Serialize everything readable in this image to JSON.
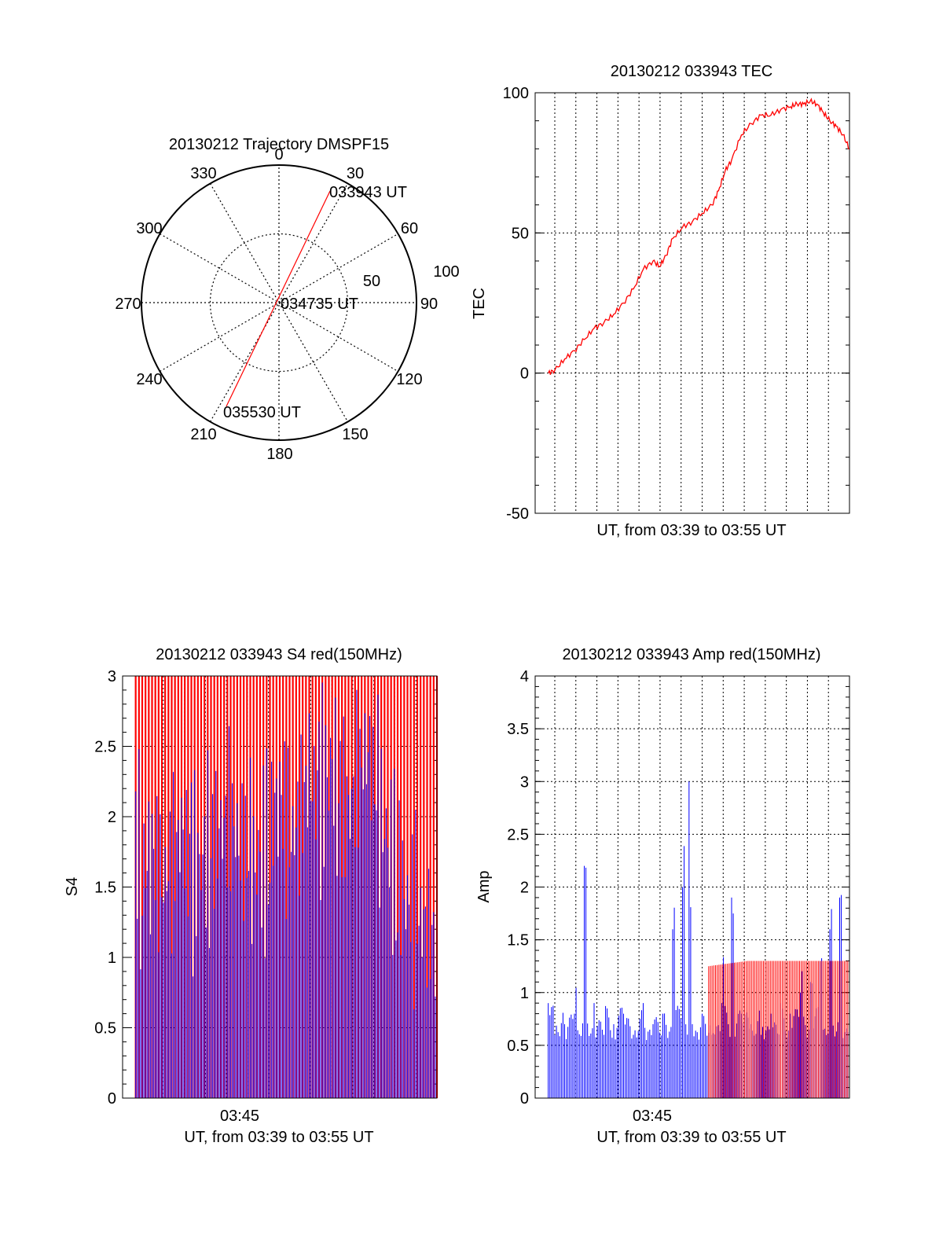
{
  "colors": {
    "red": "#ff0000",
    "blue": "#0000ff",
    "axis": "#000000"
  },
  "panels": {
    "polar": {
      "title": "20130212 Trajectory DMSPF15",
      "angle_labels": [
        "0",
        "30",
        "60",
        "90",
        "120",
        "150",
        "180",
        "210",
        "240",
        "270",
        "300",
        "330"
      ],
      "radius_labels": [
        "50",
        "100"
      ],
      "trajectory_labels": {
        "start": "033943 UT",
        "mid": "034735 UT",
        "end": "035530 UT"
      }
    },
    "tec": {
      "title": "20130212 033943 TEC",
      "xlabel": "UT, from 03:39 to 03:55 UT",
      "ylabel": "TEC"
    },
    "s4": {
      "title": "20130212 033943 S4 red(150MHz)",
      "xlabel": "UT, from 03:39 to 03:55 UT",
      "ylabel": "S4"
    },
    "amp": {
      "title": "20130212 033943 Amp red(150MHz)",
      "xlabel": "UT, from 03:39 to 03:55 UT",
      "ylabel": "Amp"
    }
  },
  "chart_data": [
    {
      "type": "polar",
      "title": "20130212 Trajectory DMSPF15",
      "r_ticks": [
        50,
        100
      ],
      "r_max": 100,
      "angle_ticks": [
        0,
        30,
        60,
        90,
        120,
        150,
        180,
        210,
        240,
        270,
        300,
        330
      ],
      "trajectory": [
        {
          "label": "033943 UT",
          "azimuth": 33,
          "r": 91
        },
        {
          "label": "034735 UT",
          "azimuth": 0,
          "r": 0
        },
        {
          "label": "035530 UT",
          "azimuth": 210,
          "r": 88
        }
      ]
    },
    {
      "type": "line",
      "title": "20130212 033943 TEC",
      "xlabel": "UT, from 03:39 to 03:55 UT",
      "ylabel": "TEC",
      "xlim": [
        "03:39",
        "03:55"
      ],
      "ylim": [
        -50,
        100
      ],
      "y_ticks": [
        -50,
        0,
        50,
        100
      ],
      "series": [
        {
          "color": "#ff0000",
          "x": [
            "03:39:40",
            "03:40",
            "03:40:30",
            "03:41",
            "03:41:30",
            "03:42",
            "03:42:30",
            "03:43",
            "03:43:30",
            "03:44",
            "03:44:30",
            "03:45",
            "03:45:20",
            "03:45:40",
            "03:46",
            "03:46:30",
            "03:47",
            "03:47:30",
            "03:48",
            "03:48:20",
            "03:48:40",
            "03:49",
            "03:49:30",
            "03:50",
            "03:50:30",
            "03:51",
            "03:51:30",
            "03:52",
            "03:52:20",
            "03:52:40",
            "03:53",
            "03:53:20",
            "03:53:40",
            "03:54",
            "03:54:20",
            "03:54:40",
            "03:55"
          ],
          "y": [
            0,
            1,
            5,
            8,
            12,
            16,
            18,
            21,
            25,
            30,
            37,
            40,
            38,
            42,
            48,
            52,
            54,
            57,
            60,
            65,
            72,
            76,
            85,
            89,
            92,
            92,
            94,
            95,
            96,
            96,
            97,
            96,
            93,
            90,
            88,
            85,
            80
          ]
        }
      ]
    },
    {
      "type": "bar",
      "title": "20130212 033943 S4 red(150MHz)",
      "xlabel": "UT, from 03:39 to 03:55 UT",
      "ylabel": "S4",
      "xlim": [
        "03:39",
        "03:55"
      ],
      "ylim": [
        0,
        3
      ],
      "x_tick_labels": [
        "03:45"
      ],
      "y_ticks": [
        0,
        0.5,
        1,
        1.5,
        2,
        2.5,
        3
      ],
      "series": [
        {
          "color": "#ff0000",
          "x": [
            "03:39:40",
            "03:40",
            "03:41",
            "03:42",
            "03:43",
            "03:44",
            "03:45",
            "03:46",
            "03:47",
            "03:48",
            "03:49",
            "03:50",
            "03:51",
            "03:52",
            "03:53",
            "03:54",
            "03:55"
          ],
          "values": [
            3,
            3,
            3,
            3,
            3,
            3,
            3,
            3,
            3,
            3,
            3,
            3,
            3,
            3,
            3,
            3,
            3
          ]
        },
        {
          "color": "#0000ff",
          "x": [
            "03:39:40",
            "03:40",
            "03:40:30",
            "03:41",
            "03:41:30",
            "03:42",
            "03:42:30",
            "03:43",
            "03:43:30",
            "03:44",
            "03:44:30",
            "03:45",
            "03:45:30",
            "03:46",
            "03:46:30",
            "03:47",
            "03:47:30",
            "03:48",
            "03:48:30",
            "03:49",
            "03:49:30",
            "03:50",
            "03:50:30",
            "03:51",
            "03:51:30",
            "03:52",
            "03:52:30",
            "03:53",
            "03:53:30",
            "03:54",
            "03:54:30",
            "03:55"
          ],
          "values": [
            1.9,
            1.6,
            1.8,
            1.5,
            1.7,
            1.9,
            1.6,
            1.7,
            1.8,
            1.9,
            2.0,
            1.8,
            1.7,
            1.6,
            1.9,
            2.2,
            1.8,
            2.0,
            2.3,
            2.1,
            2.4,
            2.2,
            2.0,
            2.3,
            2.5,
            2.1,
            1.8,
            1.6,
            1.4,
            1.3,
            1.2,
            1.1
          ]
        }
      ]
    },
    {
      "type": "bar",
      "title": "20130212 033943 Amp red(150MHz)",
      "xlabel": "UT, from 03:39 to 03:55 UT",
      "ylabel": "Amp",
      "xlim": [
        "03:39",
        "03:55"
      ],
      "ylim": [
        0,
        4
      ],
      "x_tick_labels": [
        "03:45"
      ],
      "y_ticks": [
        0,
        0.5,
        1,
        1.5,
        2,
        2.5,
        3,
        3.5,
        4
      ],
      "series": [
        {
          "color": "#0000ff",
          "x": [
            "03:39:40",
            "03:40",
            "03:40:30",
            "03:41",
            "03:41:30",
            "03:42",
            "03:42:30",
            "03:43",
            "03:43:30",
            "03:44",
            "03:44:30",
            "03:45",
            "03:45:30",
            "03:46",
            "03:46:30",
            "03:46:50",
            "03:47",
            "03:47:30",
            "03:48",
            "03:48:30",
            "03:49",
            "03:49:30",
            "03:50",
            "03:50:30",
            "03:51",
            "03:51:30",
            "03:52",
            "03:52:30",
            "03:53",
            "03:53:30",
            "03:54",
            "03:54:30",
            "03:55"
          ],
          "values": [
            0.9,
            0.6,
            0.7,
            0.8,
            2.2,
            0.9,
            0.6,
            0.7,
            0.8,
            0.6,
            0.9,
            0.7,
            0.8,
            1.6,
            2.0,
            3.0,
            0.7,
            0.8,
            0.6,
            0.9,
            1.9,
            0.8,
            0.7,
            0.6,
            0.8,
            0.9,
            0.8,
            1.0,
            1.1,
            1.3,
            1.6,
            1.9,
            1.5
          ]
        },
        {
          "color": "#ff0000",
          "x": [
            "03:47:50",
            "03:49:50"
          ],
          "values": [
            1.25,
            1.3
          ]
        }
      ]
    }
  ]
}
